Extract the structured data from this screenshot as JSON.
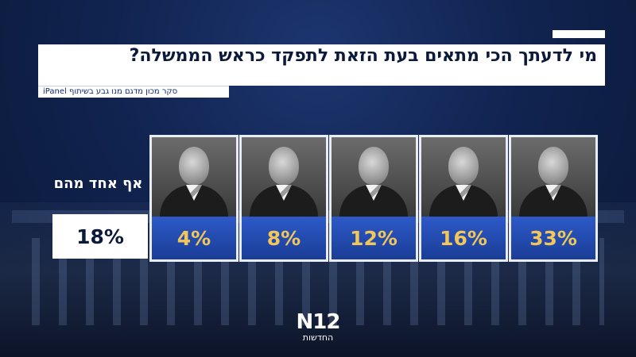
{
  "title": "מי לדעתך הכי מתאים בעת הזאת לתפקד כראש הממשלה?",
  "source": "סקר מכון מדגם מנו גבע בשיתוף iPanel",
  "none_label": "אף אחד מהם",
  "none_value_text": "18%",
  "logo": {
    "mark": "N12",
    "sub": "החדשות"
  },
  "colors": {
    "background": "#112451",
    "band": "#2d5ac9",
    "value_text": "#f1c75a",
    "title_text": "#0b1a3a"
  },
  "chart_data": {
    "type": "bar",
    "title": "מי לדעתך הכי מתאים בעת הזאת לתפקד כראש הממשלה?",
    "categories": [
      "",
      "",
      "",
      "",
      "",
      ""
    ],
    "values": [
      18,
      4,
      8,
      12,
      16,
      33
    ],
    "labels": [
      "18%",
      "4%",
      "8%",
      "12%",
      "16%",
      "33%"
    ],
    "category_labels_note": "",
    "ylim": [
      0,
      100
    ]
  }
}
